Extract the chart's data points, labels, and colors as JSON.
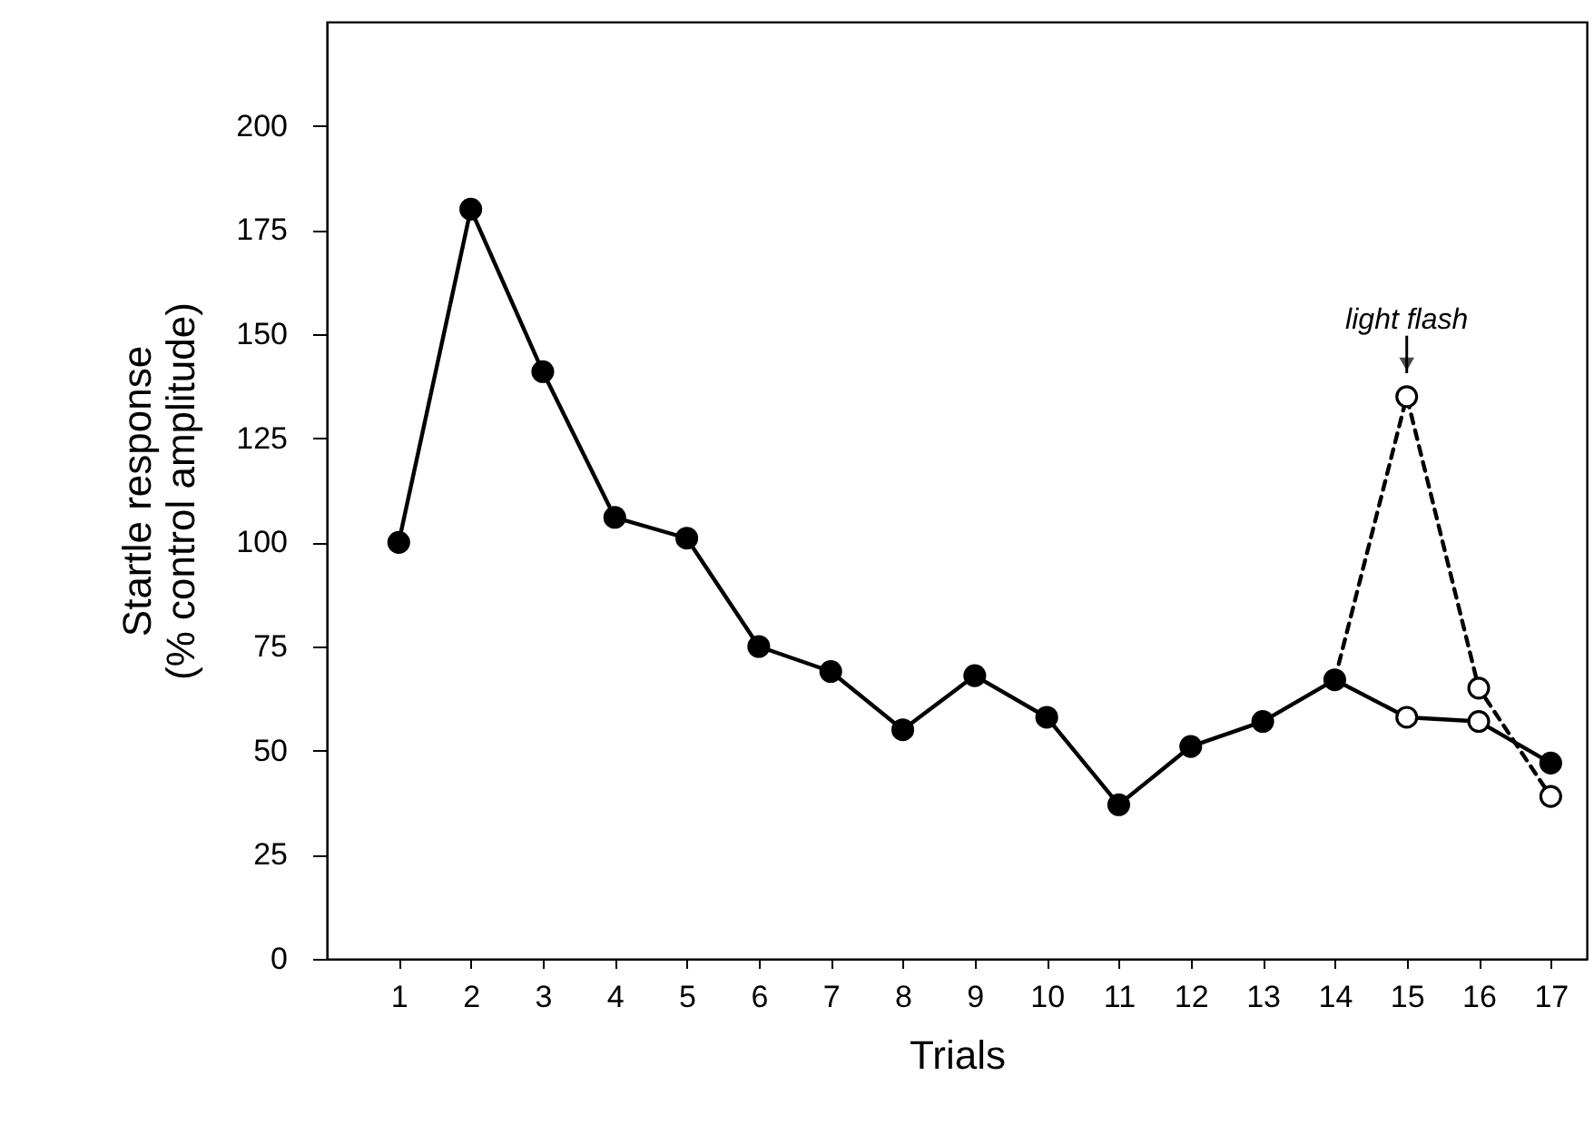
{
  "chart_data": {
    "type": "line",
    "xlabel": "Trials",
    "ylabel": "Startle response\n(% control amplitude)",
    "xlim": [
      0,
      17.5
    ],
    "xticks": [
      1,
      2,
      3,
      4,
      5,
      6,
      7,
      8,
      9,
      10,
      11,
      12,
      13,
      14,
      15,
      16,
      17
    ],
    "ylim": [
      0,
      225
    ],
    "yticks": [
      0,
      25,
      50,
      75,
      100,
      125,
      150,
      175,
      200
    ],
    "grid": false,
    "annotations": [
      {
        "text": "light flash",
        "x": 15,
        "y": 135
      }
    ],
    "series": [
      {
        "type": "line",
        "line_style": "solid",
        "color": "#000000",
        "x": [
          1,
          2,
          3,
          4,
          5,
          6,
          7,
          8,
          9,
          10,
          11,
          12,
          13,
          14,
          15,
          16,
          17
        ],
        "values": [
          100,
          180,
          141,
          106,
          101,
          75,
          69,
          55,
          68,
          58,
          37,
          51,
          57,
          67,
          58,
          57,
          47
        ]
      },
      {
        "type": "line",
        "line_style": "dashed",
        "color": "#000000",
        "x": [
          14,
          15,
          16,
          17
        ],
        "values": [
          67,
          135,
          65,
          39
        ]
      },
      {
        "type": "scatter",
        "marker": "circle",
        "color": "#000000",
        "x": [
          1,
          2,
          3,
          4,
          5,
          6,
          7,
          8,
          9,
          10,
          11,
          12,
          13,
          14,
          17
        ],
        "values": [
          100,
          180,
          141,
          106,
          101,
          75,
          69,
          55,
          68,
          58,
          37,
          51,
          57,
          67,
          47
        ]
      },
      {
        "type": "scatter",
        "marker": "circle",
        "color": "#ffffff",
        "x": [
          15,
          16,
          15,
          16,
          17
        ],
        "values": [
          58,
          57,
          135,
          65,
          39
        ]
      }
    ]
  }
}
